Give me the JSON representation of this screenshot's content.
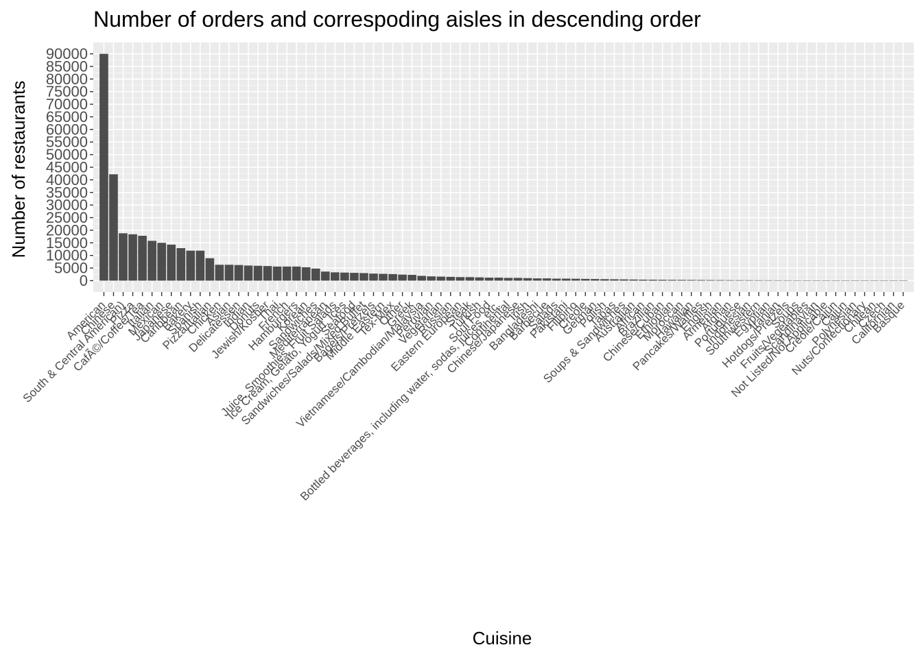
{
  "chart_data": {
    "type": "bar",
    "title": "Number of orders and correspoding aisles in descending order",
    "xlabel": "Cuisine",
    "ylabel": "Number of restaurants",
    "ylim": [
      0,
      90000
    ],
    "yticks": [
      0,
      5000,
      10000,
      15000,
      20000,
      25000,
      30000,
      35000,
      40000,
      45000,
      50000,
      55000,
      60000,
      65000,
      70000,
      75000,
      80000,
      85000,
      90000
    ],
    "grid": true,
    "legend": "none",
    "bar_color": "#4d4d4d",
    "panel_color": "#ebebeb",
    "categories": [
      "American",
      "Chinese",
      "South & Central American)",
      "Pizza",
      "CafÃ©/Coffee/Tea",
      "Italian",
      "Mexican",
      "Japanese",
      "Caribbean",
      "Bakery",
      "Spanish",
      "Pizza/Italian",
      "Chicken",
      "Asian",
      "Delicatessen",
      "Indian",
      "Donuts",
      "Jewish/Kosher",
      "Thai",
      "French",
      "Hamburgers",
      "Korean",
      "Sandwiches",
      "Mediterranean",
      "Juice, Smoothies, Fruit Salads",
      "Ice Cream, Gelato, Yogurt, Ices",
      "Seafood",
      "Sandwiches/Salads/Mixed Buffet",
      "Bagels/Pretzels",
      "Middle Eastern",
      "Tex-Mex",
      "Other",
      "Greek",
      "Vietnamese/Cambodian/Malaysia",
      "Peruvian",
      "Vegetarian",
      "Russian",
      "Eastern European",
      "Steak",
      "Turkish",
      "Soul Food",
      "Bottled beverages, including water, sodas, juices, etc.",
      "Continental",
      "Chinese/Japanese",
      "Irish",
      "Bangladeshi",
      "Barbecue",
      "Salads",
      "Pakistani",
      "Filipino",
      "Creole",
      "German",
      "Polish",
      "Tapas",
      "Soups & Sandwiches",
      "Australian",
      "African",
      "Brazilian",
      "Chinese/Cuban",
      "Ethiopian",
      "Moroccan",
      "Hawaiian",
      "Pancakes/Waffles",
      "English",
      "Armenian",
      "Afghan",
      "Portuguese",
      "Indonesian",
      "Southwestern",
      "Egyptian",
      "Iranian",
      "Hotdogs/Pretzels",
      "Soups",
      "Fruits/Vegetables",
      "Scandinavian",
      "Not Listed/Not Applicable",
      "Creole/Cajun",
      "Cajun",
      "Polynesian",
      "Nuts/Confectionary",
      "Chilean",
      "Czech",
      "Californian",
      "Basque"
    ],
    "values": [
      90000,
      42200,
      18800,
      18400,
      17800,
      15800,
      15000,
      14300,
      12900,
      11900,
      11900,
      8900,
      6300,
      6300,
      6200,
      6000,
      5900,
      5800,
      5600,
      5600,
      5600,
      5300,
      4800,
      3600,
      3300,
      3200,
      3100,
      3000,
      2800,
      2700,
      2600,
      2400,
      2300,
      1900,
      1700,
      1600,
      1500,
      1400,
      1400,
      1300,
      1200,
      1200,
      1100,
      1100,
      1000,
      900,
      900,
      800,
      800,
      750,
      700,
      650,
      600,
      550,
      500,
      450,
      400,
      380,
      350,
      320,
      300,
      280,
      260,
      240,
      220,
      200,
      190,
      180,
      170,
      160,
      150,
      140,
      130,
      120,
      110,
      100,
      90,
      80,
      70,
      60,
      50,
      40,
      30,
      20
    ]
  }
}
